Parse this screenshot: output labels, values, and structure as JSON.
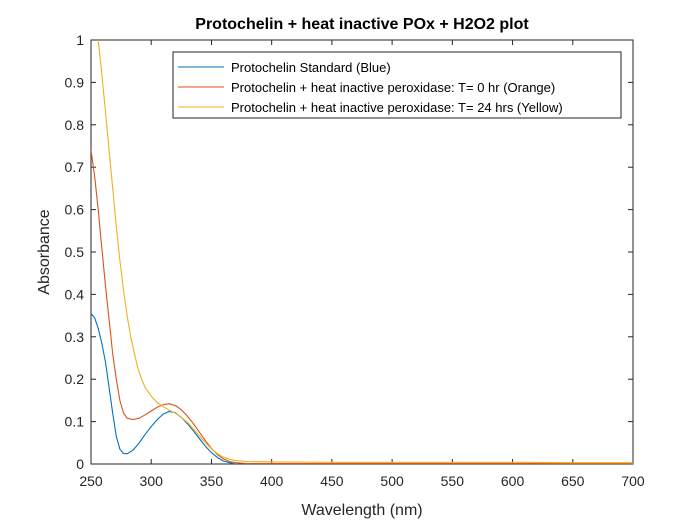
{
  "chart_data": {
    "type": "line",
    "title": "Protochelin + heat inactive POx + H2O2 plot",
    "xlabel": "Wavelength (nm)",
    "ylabel": "Absorbance",
    "xlim": [
      250,
      700
    ],
    "ylim": [
      0,
      1
    ],
    "xticks": [
      "250",
      "300",
      "350",
      "400",
      "450",
      "500",
      "550",
      "600",
      "650",
      "700"
    ],
    "yticks": [
      "0",
      "0.1",
      "0.2",
      "0.3",
      "0.4",
      "0.5",
      "0.6",
      "0.7",
      "0.8",
      "0.9",
      "1"
    ],
    "grid": false,
    "legend_position": "top-right",
    "series": [
      {
        "name": "Protochelin Standard (Blue)",
        "color": "#0072BD",
        "points": [
          [
            250,
            0.355
          ],
          [
            253,
            0.345
          ],
          [
            256,
            0.32
          ],
          [
            259,
            0.285
          ],
          [
            262,
            0.24
          ],
          [
            265,
            0.18
          ],
          [
            268,
            0.12
          ],
          [
            271,
            0.065
          ],
          [
            274,
            0.035
          ],
          [
            277,
            0.025
          ],
          [
            280,
            0.024
          ],
          [
            285,
            0.033
          ],
          [
            290,
            0.05
          ],
          [
            295,
            0.07
          ],
          [
            300,
            0.088
          ],
          [
            305,
            0.105
          ],
          [
            310,
            0.118
          ],
          [
            315,
            0.124
          ],
          [
            320,
            0.121
          ],
          [
            325,
            0.11
          ],
          [
            330,
            0.095
          ],
          [
            335,
            0.078
          ],
          [
            340,
            0.06
          ],
          [
            345,
            0.042
          ],
          [
            350,
            0.027
          ],
          [
            355,
            0.015
          ],
          [
            360,
            0.007
          ],
          [
            365,
            0.003
          ],
          [
            370,
            0.0
          ],
          [
            380,
            -0.002
          ],
          [
            400,
            -0.003
          ],
          [
            450,
            -0.003
          ],
          [
            500,
            -0.003
          ],
          [
            550,
            -0.003
          ],
          [
            600,
            -0.003
          ],
          [
            650,
            -0.003
          ],
          [
            700,
            -0.003
          ]
        ]
      },
      {
        "name": "Protochelin + heat inactive peroxidase: T= 0 hr (Orange)",
        "color": "#D95319",
        "points": [
          [
            250,
            0.74
          ],
          [
            253,
            0.68
          ],
          [
            256,
            0.6
          ],
          [
            259,
            0.51
          ],
          [
            262,
            0.42
          ],
          [
            265,
            0.34
          ],
          [
            268,
            0.26
          ],
          [
            271,
            0.2
          ],
          [
            274,
            0.15
          ],
          [
            277,
            0.12
          ],
          [
            280,
            0.108
          ],
          [
            285,
            0.105
          ],
          [
            290,
            0.108
          ],
          [
            295,
            0.116
          ],
          [
            300,
            0.125
          ],
          [
            305,
            0.134
          ],
          [
            310,
            0.14
          ],
          [
            315,
            0.142
          ],
          [
            320,
            0.138
          ],
          [
            325,
            0.128
          ],
          [
            330,
            0.113
          ],
          [
            335,
            0.095
          ],
          [
            340,
            0.075
          ],
          [
            345,
            0.055
          ],
          [
            350,
            0.037
          ],
          [
            355,
            0.022
          ],
          [
            360,
            0.012
          ],
          [
            365,
            0.006
          ],
          [
            370,
            0.003
          ],
          [
            380,
            0.001
          ],
          [
            400,
            0.001
          ],
          [
            450,
            0.001
          ],
          [
            500,
            0.001
          ],
          [
            550,
            0.001
          ],
          [
            600,
            0.001
          ],
          [
            650,
            0.001
          ],
          [
            700,
            0.001
          ]
        ]
      },
      {
        "name": "Protochelin + heat inactive peroxidase: T= 24 hrs (Yellow)",
        "color": "#EDB120",
        "points": [
          [
            256,
            1.0
          ],
          [
            259,
            0.92
          ],
          [
            262,
            0.83
          ],
          [
            265,
            0.74
          ],
          [
            268,
            0.65
          ],
          [
            271,
            0.56
          ],
          [
            274,
            0.48
          ],
          [
            277,
            0.41
          ],
          [
            280,
            0.35
          ],
          [
            283,
            0.3
          ],
          [
            286,
            0.26
          ],
          [
            289,
            0.225
          ],
          [
            292,
            0.2
          ],
          [
            295,
            0.18
          ],
          [
            300,
            0.16
          ],
          [
            305,
            0.145
          ],
          [
            310,
            0.135
          ],
          [
            315,
            0.127
          ],
          [
            320,
            0.12
          ],
          [
            325,
            0.11
          ],
          [
            330,
            0.098
          ],
          [
            335,
            0.083
          ],
          [
            340,
            0.066
          ],
          [
            345,
            0.05
          ],
          [
            350,
            0.036
          ],
          [
            355,
            0.024
          ],
          [
            360,
            0.016
          ],
          [
            365,
            0.011
          ],
          [
            370,
            0.008
          ],
          [
            380,
            0.006
          ],
          [
            400,
            0.005
          ],
          [
            450,
            0.004
          ],
          [
            500,
            0.004
          ],
          [
            550,
            0.004
          ],
          [
            600,
            0.004
          ],
          [
            650,
            0.003
          ],
          [
            700,
            0.003
          ]
        ]
      }
    ]
  }
}
